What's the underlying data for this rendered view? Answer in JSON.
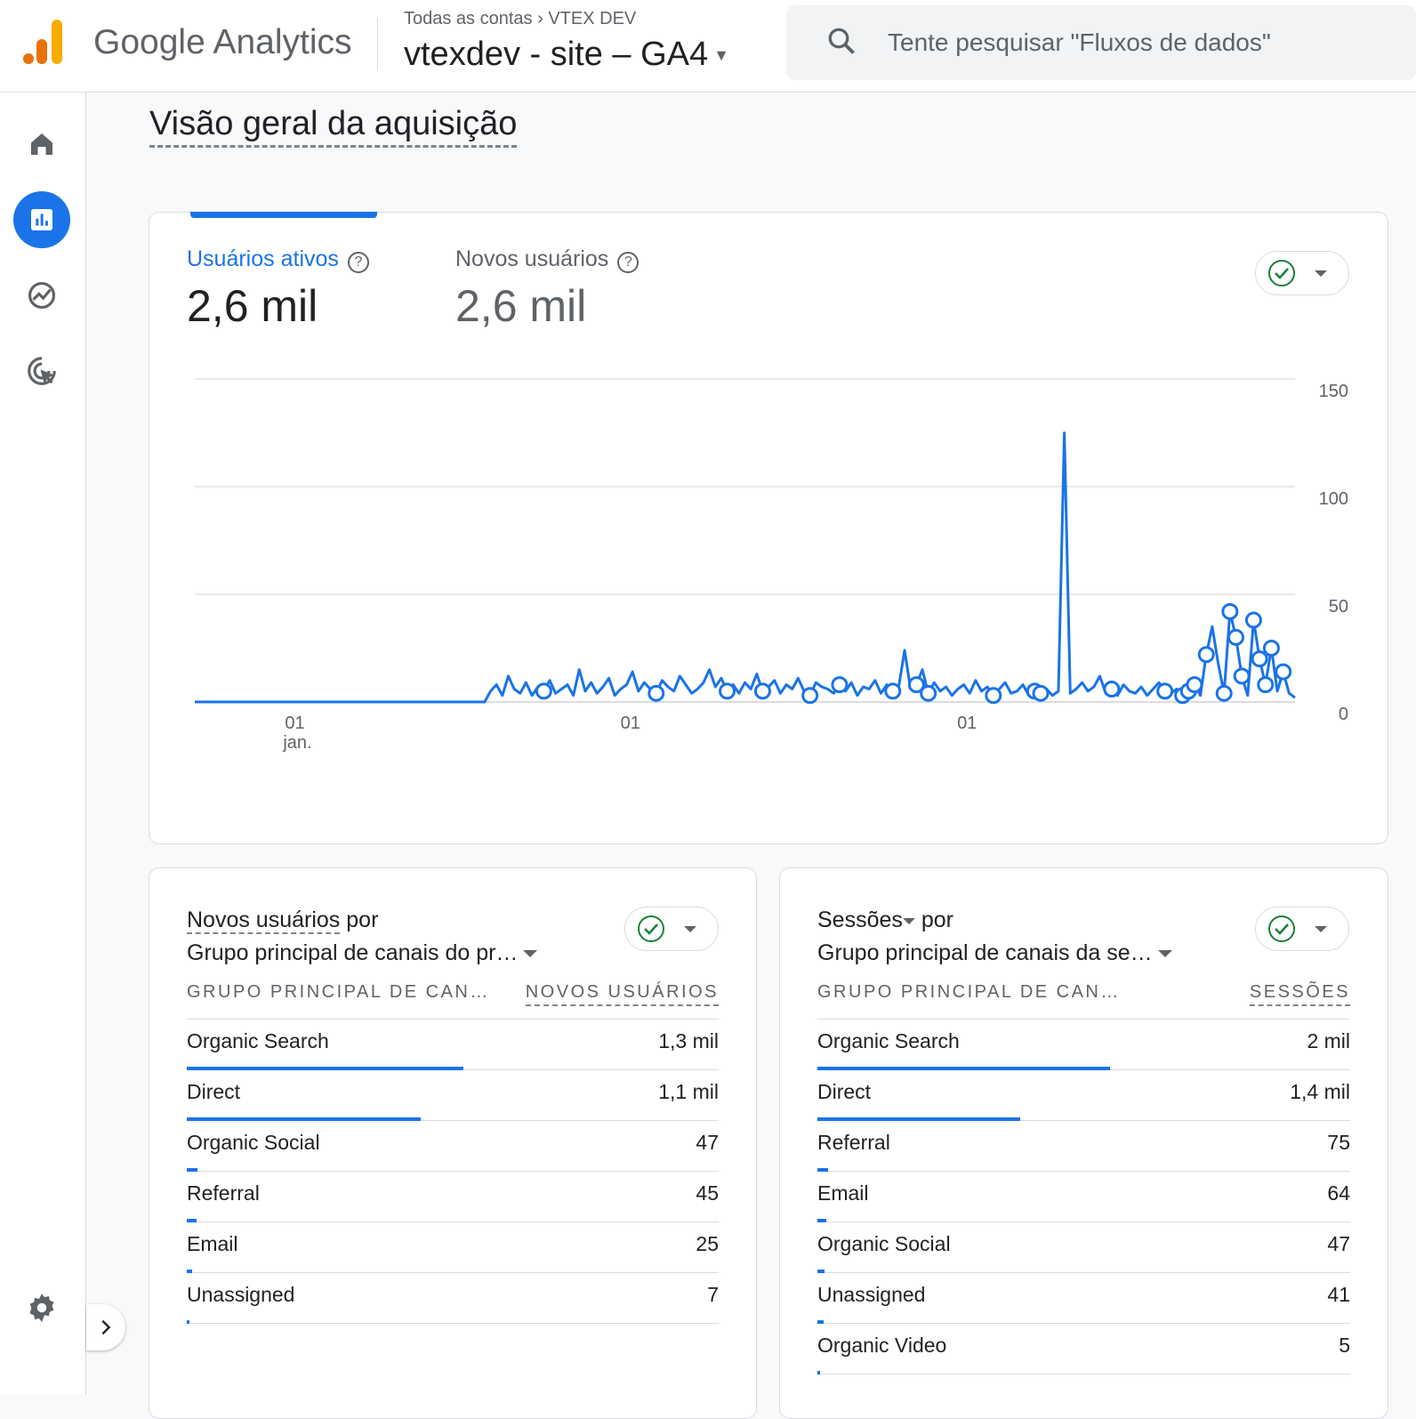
{
  "header": {
    "brand": "Google Analytics",
    "breadcrumb_root": "Todas as contas",
    "breadcrumb_account": "VTEX DEV",
    "property": "vtexdev - site – GA4",
    "search_placeholder": "Tente pesquisar \"Fluxos de dados\""
  },
  "sidebar": {
    "items": [
      "home-icon",
      "reports-icon",
      "explore-icon",
      "advertising-icon"
    ],
    "active": "reports"
  },
  "page": {
    "title": "Visão geral da aquisição"
  },
  "overview": {
    "metrics": [
      {
        "label": "Usuários ativos",
        "value": "2,6 mil"
      },
      {
        "label": "Novos usuários",
        "value": "2,6 mil"
      }
    ]
  },
  "chart_data": {
    "type": "line",
    "title": "Usuários ativos",
    "ylim": [
      0,
      150
    ],
    "yticks": [
      "150",
      "100",
      "50",
      "0"
    ],
    "xticks": [
      {
        "label": "01",
        "sub": "jan.",
        "pos": 0.09
      },
      {
        "label": "01",
        "sub": "",
        "pos": 0.395
      },
      {
        "label": "01",
        "sub": "",
        "pos": 0.701
      }
    ],
    "color": "#1a73e8",
    "values": [
      0,
      0,
      0,
      0,
      0,
      0,
      0,
      0,
      0,
      0,
      0,
      0,
      0,
      0,
      0,
      0,
      0,
      0,
      0,
      0,
      0,
      0,
      0,
      0,
      0,
      0,
      0,
      0,
      0,
      0,
      0,
      0,
      0,
      0,
      0,
      0,
      0,
      0,
      0,
      0,
      0,
      0,
      0,
      0,
      0,
      0,
      0,
      0,
      0,
      0,
      5,
      8,
      3,
      12,
      6,
      4,
      9,
      3,
      7,
      5,
      10,
      4,
      6,
      8,
      3,
      15,
      5,
      9,
      4,
      7,
      11,
      3,
      6,
      8,
      14,
      5,
      9,
      6,
      4,
      10,
      7,
      5,
      12,
      8,
      4,
      6,
      9,
      15,
      7,
      11,
      5,
      8,
      4,
      9,
      6,
      13,
      5,
      7,
      10,
      4,
      8,
      6,
      11,
      5,
      3,
      9,
      7,
      6,
      4,
      8,
      5,
      9,
      3,
      7,
      6,
      10,
      4,
      8,
      5,
      7,
      24,
      6,
      8,
      15,
      4,
      9,
      5,
      7,
      3,
      6,
      8,
      4,
      10,
      5,
      7,
      3,
      6,
      9,
      4,
      5,
      8,
      3,
      5,
      4,
      6,
      3,
      5,
      125,
      4,
      6,
      9,
      5,
      7,
      12,
      4,
      6,
      3,
      8,
      5,
      4,
      7,
      3,
      6,
      9,
      5,
      4,
      6,
      3,
      5,
      8,
      3,
      22,
      35,
      18,
      4,
      42,
      30,
      12,
      3,
      38,
      20,
      8,
      25,
      5,
      14,
      4,
      2
    ],
    "anomalies": [
      59,
      78,
      90,
      96,
      104,
      109,
      118,
      122,
      124,
      135,
      142,
      143,
      155,
      164,
      167,
      168,
      169,
      171,
      174,
      175,
      176,
      177,
      179,
      180,
      181,
      182,
      184
    ]
  },
  "left_table": {
    "metric": "Novos usuários",
    "por": "por",
    "dimension": "Grupo principal de canais do pr…",
    "col_dim": "GRUPO PRINCIPAL DE CAN…",
    "col_metric": "NOVOS USUÁRIOS",
    "rows": [
      {
        "label": "Organic Search",
        "value": "1,3 mil",
        "share": 0.52
      },
      {
        "label": "Direct",
        "value": "1,1 mil",
        "share": 0.44
      },
      {
        "label": "Organic Social",
        "value": "47",
        "share": 0.02
      },
      {
        "label": "Referral",
        "value": "45",
        "share": 0.018
      },
      {
        "label": "Email",
        "value": "25",
        "share": 0.01
      },
      {
        "label": "Unassigned",
        "value": "7",
        "share": 0.003
      }
    ]
  },
  "right_table": {
    "metric": "Sessões",
    "por": "por",
    "dimension": "Grupo principal de canais da se…",
    "col_dim": "GRUPO PRINCIPAL DE CAN…",
    "col_metric": "SESSÕES",
    "rows": [
      {
        "label": "Organic Search",
        "value": "2 mil",
        "share": 0.55
      },
      {
        "label": "Direct",
        "value": "1,4 mil",
        "share": 0.38
      },
      {
        "label": "Referral",
        "value": "75",
        "share": 0.02
      },
      {
        "label": "Email",
        "value": "64",
        "share": 0.017
      },
      {
        "label": "Organic Social",
        "value": "47",
        "share": 0.013
      },
      {
        "label": "Unassigned",
        "value": "41",
        "share": 0.011
      },
      {
        "label": "Organic Video",
        "value": "5",
        "share": 0.002
      }
    ]
  }
}
